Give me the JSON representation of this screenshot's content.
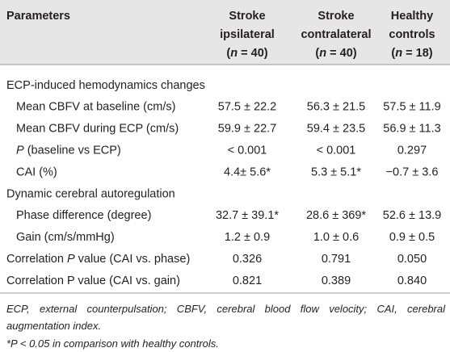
{
  "table": {
    "header": {
      "label": "Parameters",
      "columns": [
        {
          "lines": [
            "Stroke",
            "ipsilateral",
            [
              {
                "text": "("
              },
              {
                "text": "n",
                "italic": true
              },
              {
                "text": " = 40)"
              }
            ]
          ]
        },
        {
          "lines": [
            "Stroke",
            "contralateral",
            [
              {
                "text": "("
              },
              {
                "text": "n",
                "italic": true
              },
              {
                "text": " = 40)"
              }
            ]
          ]
        },
        {
          "lines": [
            "Healthy",
            "controls",
            [
              {
                "text": "("
              },
              {
                "text": "n",
                "italic": true
              },
              {
                "text": " = 18)"
              }
            ]
          ]
        }
      ]
    },
    "sections": [
      {
        "title": "ECP-induced hemodynamics changes",
        "rows": [
          {
            "label": "Mean CBFV at baseline (cm/s)",
            "cells": [
              "57.5 ± 22.2",
              "56.3 ± 21.5",
              "57.5 ± 11.9"
            ]
          },
          {
            "label": "Mean CBFV during ECP (cm/s)",
            "cells": [
              "59.9 ± 22.7",
              "59.4 ± 23.5",
              "56.9 ± 11.3"
            ]
          },
          {
            "label": [
              {
                "text": "P",
                "italic": true
              },
              {
                "text": " (baseline vs ECP)"
              }
            ],
            "cells": [
              "< 0.001",
              "< 0.001",
              "0.297"
            ]
          },
          {
            "label": "CAI (%)",
            "cells": [
              "4.4± 5.6*",
              "5.3 ± 5.1*",
              "−0.7 ± 3.6"
            ]
          }
        ]
      },
      {
        "title": "Dynamic cerebral autoregulation",
        "rows": [
          {
            "label": "Phase difference (degree)",
            "cells": [
              "32.7 ± 39.1*",
              "28.6 ± 369*",
              "52.6 ± 13.9"
            ]
          },
          {
            "label": "Gain (cm/s/mmHg)",
            "cells": [
              "1.2 ± 0.9",
              "1.0 ± 0.6",
              "0.9 ± 0.5"
            ]
          }
        ]
      }
    ],
    "rows": [
      {
        "label": [
          {
            "text": "Correlation "
          },
          {
            "text": "P",
            "italic": true
          },
          {
            "text": " value (CAI vs. phase)"
          }
        ],
        "cells": [
          "0.326",
          "0.791",
          "0.050"
        ]
      },
      {
        "label": "Correlation P value (CAI vs. gain)",
        "cells": [
          "0.821",
          "0.389",
          "0.840"
        ]
      }
    ],
    "footnotes": [
      "ECP, external counterpulsation; CBFV, cerebral blood flow velocity; CAI, cerebral augmentation index.",
      "*P < 0.05 in comparison with healthy controls."
    ]
  }
}
